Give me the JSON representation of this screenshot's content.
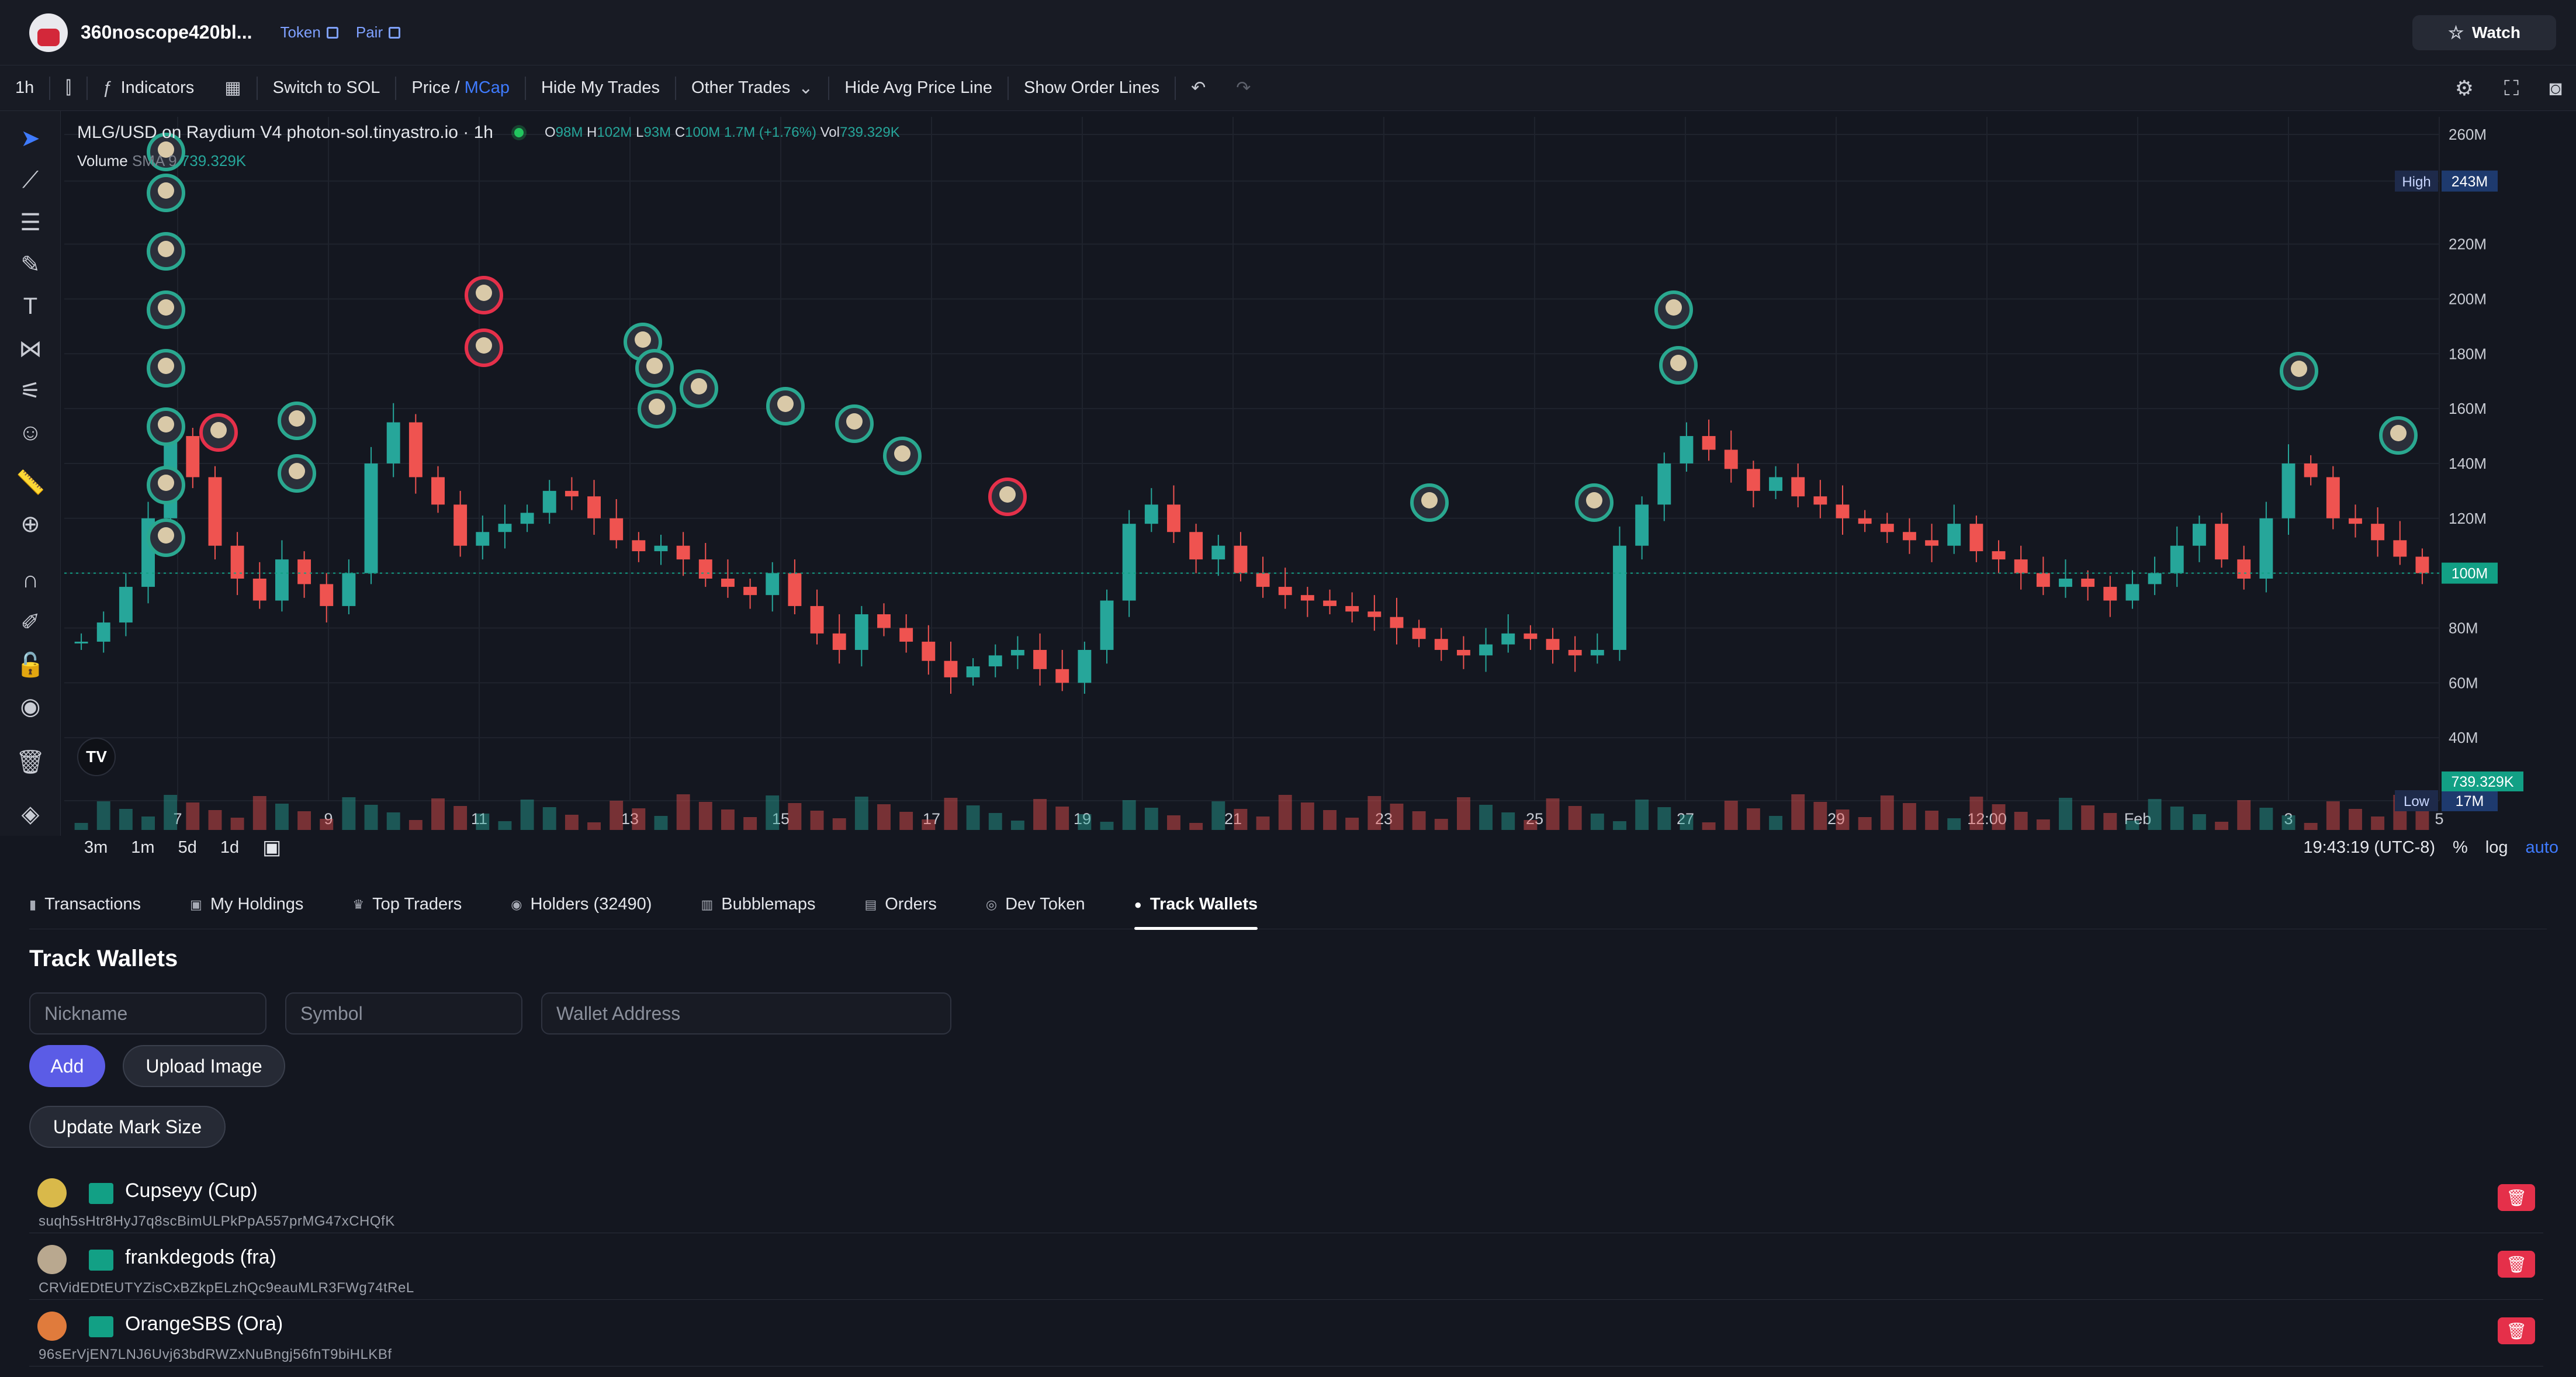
{
  "header": {
    "title": "360noscope420bl...",
    "token_label": "Token",
    "pair_label": "Pair",
    "watch_label": "Watch"
  },
  "toolbar": {
    "interval": "1h",
    "indicators": "Indicators",
    "switch": "Switch to SOL",
    "price_prefix": "Price /",
    "mcap": "MCap",
    "hide_my_trades": "Hide My Trades",
    "other_trades": "Other Trades",
    "hide_avg": "Hide Avg Price Line",
    "show_order": "Show Order Lines"
  },
  "chart": {
    "legend_title": "MLG/USD on Raydium V4 photon-sol.tinyastro.io · 1h",
    "o_label": "O",
    "o_val": "98M",
    "h_label": "H",
    "h_val": "102M",
    "l_label": "L",
    "l_val": "93M",
    "c_label": "C",
    "c_val": "100M 1.7M (+1.76%)",
    "vol_label": "Vol",
    "vol_val": "739.329K",
    "volume_label": "Volume",
    "sma_label": "SMA 9",
    "sma_val": "739.329K",
    "tv_logo": "TV"
  },
  "chart_data": {
    "type": "candlestick",
    "y_ticks": [
      "260M",
      "243M",
      "220M",
      "200M",
      "180M",
      "160M",
      "140M",
      "120M",
      "100M",
      "80M",
      "60M",
      "40M",
      "17M"
    ],
    "y_range": [
      17,
      260
    ],
    "x_ticks": [
      "7",
      "9",
      "11",
      "13",
      "15",
      "17",
      "19",
      "21",
      "23",
      "25",
      "27",
      "29",
      "12:00",
      "Feb",
      "3",
      "5"
    ],
    "high_label": "High",
    "high_value": "243M",
    "low_label": "Low",
    "low_value": "17M",
    "current_value": "100M",
    "volume_value": "739.329K",
    "close_series": [
      75,
      82,
      95,
      120,
      150,
      135,
      110,
      98,
      90,
      105,
      96,
      88,
      100,
      140,
      155,
      135,
      125,
      110,
      115,
      118,
      122,
      130,
      128,
      120,
      112,
      108,
      110,
      105,
      98,
      95,
      92,
      100,
      88,
      78,
      72,
      85,
      80,
      75,
      68,
      62,
      66,
      70,
      72,
      65,
      60,
      72,
      90,
      118,
      125,
      115,
      105,
      110,
      100,
      95,
      92,
      90,
      88,
      86,
      84,
      80,
      76,
      72,
      70,
      74,
      78,
      76,
      72,
      70,
      72,
      110,
      125,
      140,
      150,
      145,
      138,
      130,
      135,
      128,
      125,
      120,
      118,
      115,
      112,
      110,
      118,
      108,
      105,
      100,
      95,
      98,
      95,
      90,
      96,
      100,
      110,
      118,
      105,
      98,
      120,
      140,
      135,
      120,
      118,
      112,
      106,
      100
    ]
  },
  "range_bar": {
    "r1": "3m",
    "r2": "1m",
    "r3": "5d",
    "r4": "1d",
    "time": "19:43:19 (UTC-8)",
    "pct": "%",
    "log": "log",
    "auto": "auto"
  },
  "tabs": [
    {
      "label": "Transactions"
    },
    {
      "label": "My Holdings"
    },
    {
      "label": "Top Traders"
    },
    {
      "label": "Holders (32490)"
    },
    {
      "label": "Bubblemaps"
    },
    {
      "label": "Orders"
    },
    {
      "label": "Dev Token"
    },
    {
      "label": "Track Wallets"
    }
  ],
  "track": {
    "title": "Track Wallets",
    "nickname_ph": "Nickname",
    "symbol_ph": "Symbol",
    "address_ph": "Wallet Address",
    "add": "Add",
    "upload": "Upload Image",
    "mark_size": "Update Mark Size"
  },
  "wallets": [
    {
      "name": "Cupseyy (Cup)",
      "address": "suqh5sHtr8HyJ7q8scBimULPkPpA557prMG47xCHQfK",
      "avatar_color": "#d9b94a"
    },
    {
      "name": "frankdegods (fra)",
      "address": "CRVidEDtEUTYZisCxBZkpELzhQc9eauMLR3FWg74tReL",
      "avatar_color": "#b9a88f"
    },
    {
      "name": "OrangeSBS (Ora)",
      "address": "96sErVjEN7LNJ6Uvj63bdRWZxNuBngj56fnT9biHLKBf",
      "avatar_color": "#e07b3c"
    }
  ],
  "colors": {
    "up": "#26a69a",
    "down": "#ef5350",
    "accent": "#5b5ce6",
    "price_tag": "#12a085"
  }
}
